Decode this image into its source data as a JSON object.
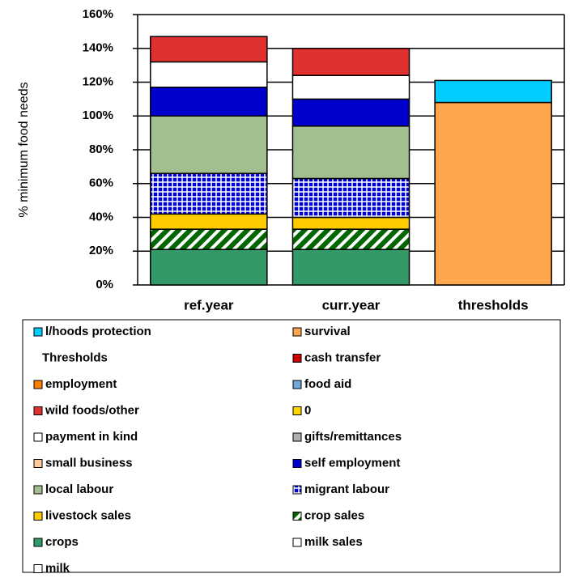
{
  "chart_data": {
    "type": "stacked_bar",
    "y_label": "% minimum food needs",
    "categories": [
      "ref.year",
      "curr.year",
      "thresholds"
    ],
    "ylim": [
      0,
      160
    ],
    "yticks": [
      {
        "value": 0,
        "label": "0%"
      },
      {
        "value": 20,
        "label": "20%"
      },
      {
        "value": 40,
        "label": "40%"
      },
      {
        "value": 60,
        "label": "60%"
      },
      {
        "value": 80,
        "label": "80%"
      },
      {
        "value": 100,
        "label": "100%"
      },
      {
        "value": 120,
        "label": "120%"
      },
      {
        "value": 140,
        "label": "140%"
      },
      {
        "value": 160,
        "label": "160%"
      }
    ],
    "grid": true,
    "series": [
      {
        "name": "l/hoods protection",
        "color": "#00ccff",
        "values": [
          null,
          null,
          13
        ]
      },
      {
        "name": "survival",
        "color": "#ffa64d",
        "values": [
          null,
          null,
          108
        ]
      },
      {
        "name": "Thresholds",
        "color": null,
        "values": [
          null,
          null,
          null
        ]
      },
      {
        "name": "cash transfer",
        "color": "#cc0000",
        "values": [
          null,
          null,
          null
        ]
      },
      {
        "name": "employment",
        "color": "#ff8000",
        "values": [
          null,
          null,
          null
        ]
      },
      {
        "name": "food aid",
        "color": "#6fa8dc",
        "values": [
          null,
          null,
          null
        ]
      },
      {
        "name": "wild foods/other",
        "color": "#e03030",
        "values": [
          15,
          16,
          null
        ]
      },
      {
        "name": "0",
        "color": "#ffd700",
        "values": [
          null,
          null,
          null
        ]
      },
      {
        "name": "payment in kind",
        "color": "#ffffff",
        "values": [
          15,
          14,
          null
        ]
      },
      {
        "name": "gifts/remittances",
        "color": "#b0b0b0",
        "values": [
          null,
          null,
          null
        ]
      },
      {
        "name": "small business",
        "color": "#ffcc99",
        "values": [
          null,
          null,
          null
        ]
      },
      {
        "name": "self employment",
        "color": "#0000cc",
        "values": [
          17,
          16,
          null
        ]
      },
      {
        "name": "local labour",
        "color": "#a3bf8f",
        "values": [
          34,
          31,
          null
        ]
      },
      {
        "name": "migrant labour",
        "color": "#0000cc",
        "pattern": "grid",
        "values": [
          24,
          23,
          null
        ]
      },
      {
        "name": "livestock sales",
        "color": "#ffcc00",
        "values": [
          9,
          7,
          null
        ]
      },
      {
        "name": "crop sales",
        "color": "#006600",
        "pattern": "diagonal",
        "values": [
          12,
          12,
          null
        ]
      },
      {
        "name": "crops",
        "color": "#339966",
        "values": [
          21,
          21,
          null
        ]
      },
      {
        "name": "milk sales",
        "color": "#ffffff",
        "values": [
          null,
          null,
          null
        ]
      },
      {
        "name": "milk",
        "color": "#ffffff",
        "values": [
          null,
          null,
          null
        ]
      }
    ]
  }
}
